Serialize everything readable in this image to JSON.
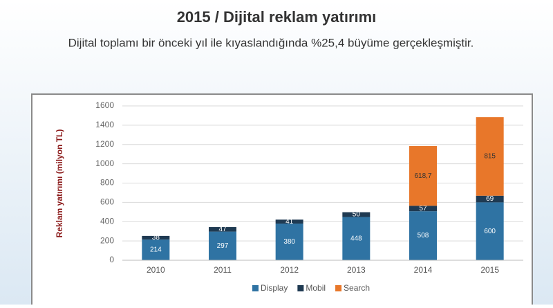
{
  "chart_data": {
    "type": "stacked-bar",
    "title": "2015 / Dijital reklam yatırımı",
    "subtitle": "Dijital toplamı bir önceki yıl ile kıyaslandığında %25,4 büyüme gerçekleşmiştir.",
    "y_label": "Reklam yatırımı (milyon TL)",
    "categories": [
      "2010",
      "2011",
      "2012",
      "2013",
      "2014",
      "2015"
    ],
    "series": [
      {
        "name": "Display",
        "color": "#2f73a3",
        "values": [
          214,
          297,
          380,
          448,
          508,
          600
        ]
      },
      {
        "name": "Mobil",
        "color": "#1f3a52",
        "values": [
          38,
          47,
          41,
          50,
          57,
          69
        ]
      },
      {
        "name": "Search",
        "color": "#e8772a",
        "values": [
          null,
          null,
          null,
          null,
          618.7,
          815
        ],
        "value_labels": [
          null,
          null,
          null,
          null,
          "618,7",
          "815"
        ]
      }
    ],
    "ylim": [
      0,
      1600
    ],
    "yticks": [
      0,
      200,
      400,
      600,
      800,
      1000,
      1200,
      1400,
      1600
    ],
    "grid": true,
    "legend": "bottom"
  }
}
